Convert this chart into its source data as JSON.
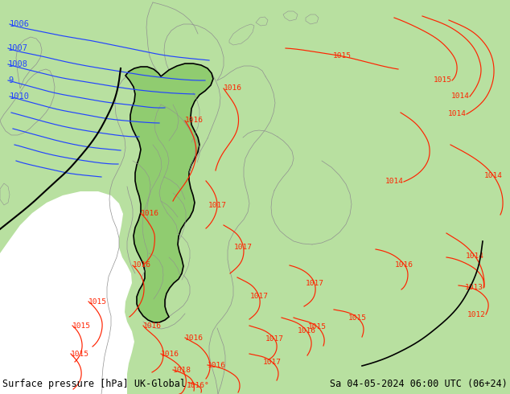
{
  "title_left": "Surface pressure [hPa] UK-Global",
  "title_right": "Sa 04-05-2024 06:00 UTC (06+24)",
  "land_green": "#b8e0a0",
  "sea_gray": "#c8c8d0",
  "germany_green": "#90cc70",
  "border_black": "#000000",
  "border_gray": "#909090",
  "blue_color": "#2244ff",
  "red_color": "#ff2200",
  "black_color": "#000000",
  "title_fontsize": 8.5,
  "isobar_fontsize": 7
}
